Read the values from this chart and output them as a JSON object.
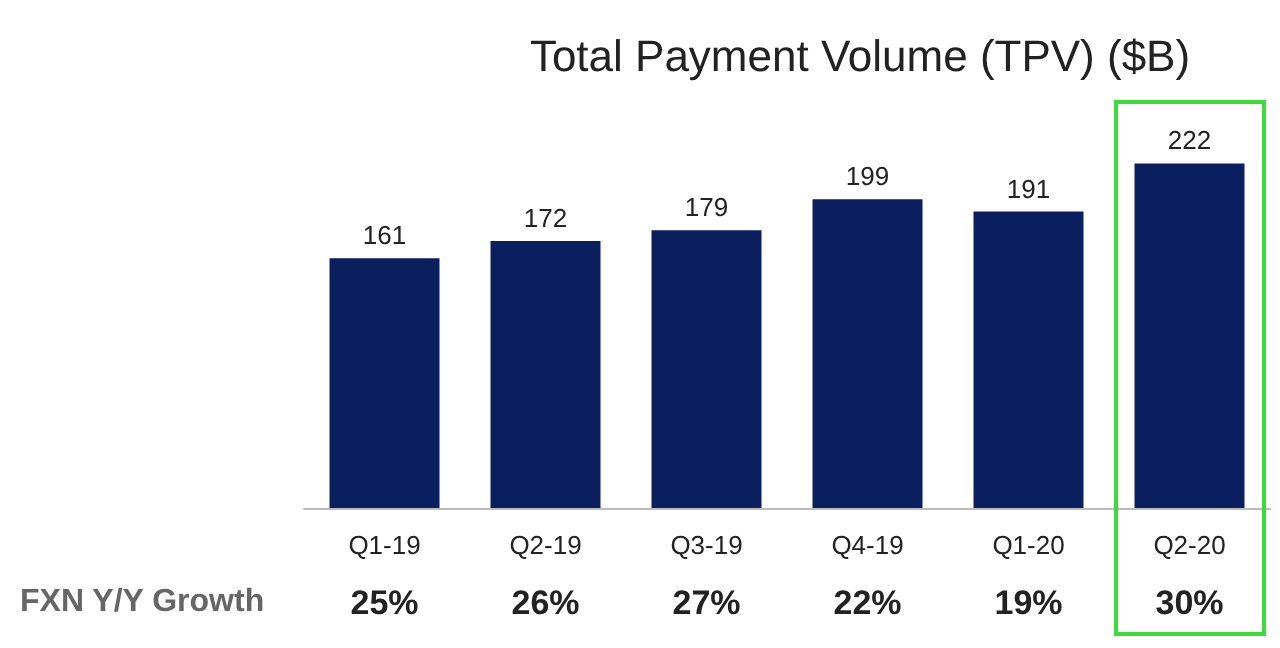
{
  "chart_data": {
    "type": "bar",
    "title": "Total Payment Volume (TPV) ($B)",
    "categories": [
      "Q1-19",
      "Q2-19",
      "Q3-19",
      "Q4-19",
      "Q1-20",
      "Q2-20"
    ],
    "values": [
      161,
      172,
      179,
      199,
      191,
      222
    ],
    "color": "#0b1f5e",
    "data_labels": true,
    "annotations": [
      "FXN Y/Y Growth",
      "25%",
      "26%",
      "27%",
      "22%",
      "19%",
      "30%"
    ]
  }
}
